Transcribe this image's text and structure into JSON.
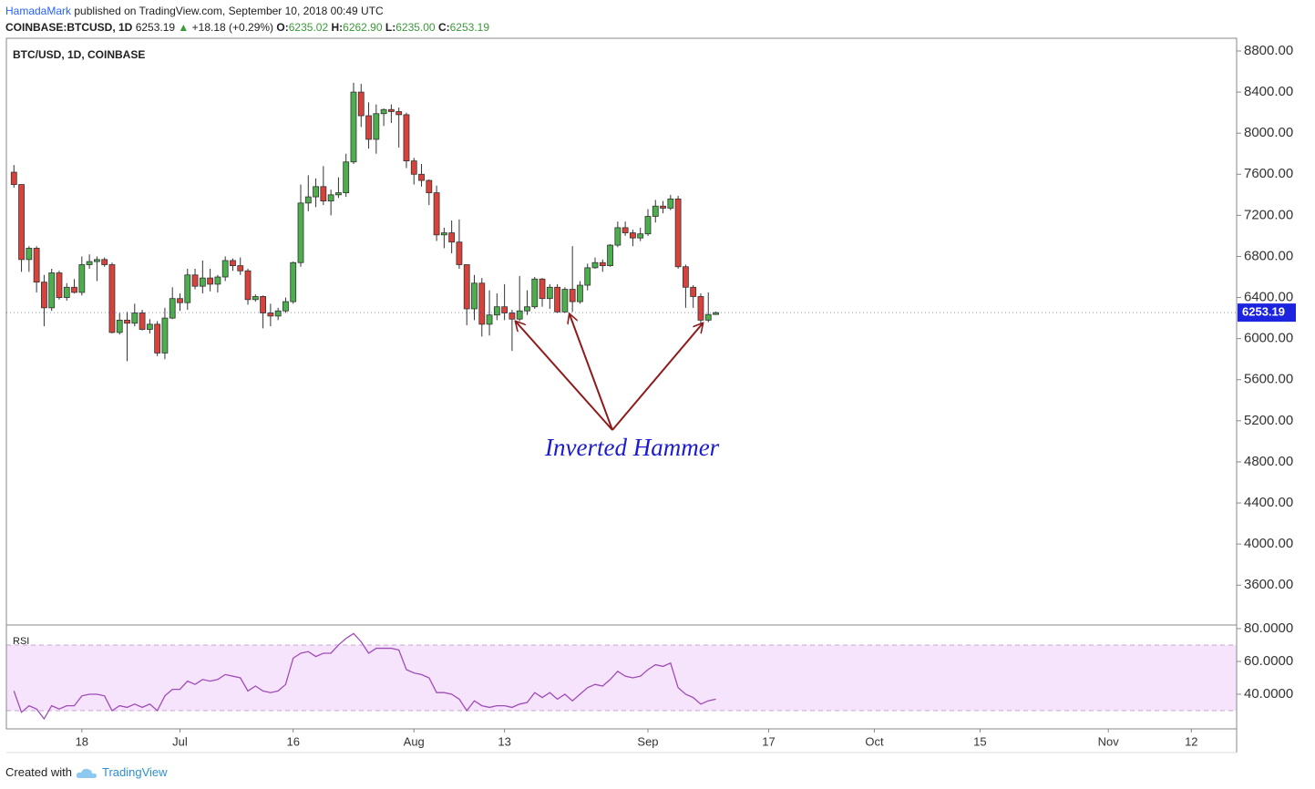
{
  "header": {
    "author": "HamadaMark",
    "published": "published on TradingView.com, September 10, 2018 00:49 UTC",
    "symbol": "COINBASE:BTCUSD, 1D",
    "price": "6253.19",
    "arrow": "▲",
    "change": "+18.18 (+0.29%)",
    "o_label": "O:",
    "o": "6235.02",
    "h_label": "H:",
    "h": "6262.90",
    "l_label": "L:",
    "l": "6235.00",
    "c_label": "C:",
    "c": "6253.19"
  },
  "footer": {
    "created": "Created with",
    "brand": "TradingView"
  },
  "chart_data": [
    {
      "type": "candlestick",
      "title": "BTC/USD, 1D, COINBASE",
      "annotation": "Inverted Hammer",
      "up_color": "#4cae4c",
      "down_color": "#d9423b",
      "last_price": 6253.19,
      "last_price_color": "#1d24e0",
      "categories": [
        "Jun 9",
        "Jun 10",
        "Jun 11",
        "Jun 12",
        "Jun 13",
        "Jun 14",
        "Jun 15",
        "Jun 16",
        "Jun 17",
        "Jun 18",
        "Jun 19",
        "Jun 20",
        "Jun 21",
        "Jun 22",
        "Jun 23",
        "Jun 24",
        "Jun 25",
        "Jun 26",
        "Jun 27",
        "Jun 28",
        "Jun 29",
        "Jun 30",
        "Jul 1",
        "Jul 2",
        "Jul 3",
        "Jul 4",
        "Jul 5",
        "Jul 6",
        "Jul 7",
        "Jul 8",
        "Jul 9",
        "Jul 10",
        "Jul 11",
        "Jul 12",
        "Jul 13",
        "Jul 14",
        "Jul 15",
        "Jul 16",
        "Jul 17",
        "Jul 18",
        "Jul 19",
        "Jul 20",
        "Jul 21",
        "Jul 22",
        "Jul 23",
        "Jul 24",
        "Jul 25",
        "Jul 26",
        "Jul 27",
        "Jul 28",
        "Jul 29",
        "Jul 30",
        "Jul 31",
        "Aug 1",
        "Aug 2",
        "Aug 3",
        "Aug 4",
        "Aug 5",
        "Aug 6",
        "Aug 7",
        "Aug 8",
        "Aug 9",
        "Aug 10",
        "Aug 11",
        "Aug 12",
        "Aug 13",
        "Aug 14",
        "Aug 15",
        "Aug 16",
        "Aug 17",
        "Aug 18",
        "Aug 19",
        "Aug 20",
        "Aug 21",
        "Aug 22",
        "Aug 23",
        "Aug 24",
        "Aug 25",
        "Aug 26",
        "Aug 27",
        "Aug 28",
        "Aug 29",
        "Aug 30",
        "Aug 31",
        "Sep 1",
        "Sep 2",
        "Sep 3",
        "Sep 4",
        "Sep 5",
        "Sep 6",
        "Sep 7",
        "Sep 8",
        "Sep 9",
        "Sep 10"
      ],
      "open": [
        7620,
        7500,
        6770,
        6880,
        6550,
        6300,
        6640,
        6400,
        6500,
        6450,
        6720,
        6750,
        6770,
        6720,
        6060,
        6180,
        6150,
        6250,
        6090,
        6140,
        5860,
        6200,
        6390,
        6350,
        6620,
        6510,
        6590,
        6530,
        6600,
        6760,
        6710,
        6660,
        6380,
        6410,
        6250,
        6220,
        6270,
        6360,
        6740,
        7320,
        7380,
        7480,
        7340,
        7400,
        7420,
        7720,
        8400,
        8170,
        7940,
        8190,
        8230,
        8210,
        8180,
        7730,
        7600,
        7540,
        7420,
        7010,
        7030,
        6940,
        6720,
        6290,
        6540,
        6140,
        6230,
        6310,
        6250,
        6190,
        6270,
        6310,
        6580,
        6390,
        6500,
        6260,
        6480,
        6360,
        6520,
        6690,
        6740,
        6710,
        6910,
        7080,
        7030,
        6980,
        7020,
        7190,
        7290,
        7270,
        7360,
        6700,
        6500,
        6410,
        6180,
        6235.02
      ],
      "high": [
        7690,
        7500,
        6900,
        6900,
        6620,
        6680,
        6660,
        6540,
        6580,
        6800,
        6820,
        6800,
        6790,
        6740,
        6250,
        6260,
        6340,
        6280,
        6190,
        6170,
        6300,
        6500,
        6440,
        6680,
        6680,
        6760,
        6680,
        6620,
        6800,
        6780,
        6790,
        6680,
        6430,
        6420,
        6340,
        6300,
        6400,
        6750,
        7500,
        7590,
        7560,
        7680,
        7450,
        7570,
        7800,
        8490,
        8480,
        8300,
        8280,
        8240,
        8280,
        8250,
        8200,
        7760,
        7700,
        7550,
        7490,
        7080,
        7150,
        7160,
        6720,
        6620,
        6590,
        6470,
        6440,
        6530,
        6280,
        6610,
        6470,
        6600,
        6590,
        6530,
        6530,
        6500,
        6900,
        6560,
        6730,
        6790,
        6770,
        6920,
        7140,
        7140,
        7060,
        7080,
        7260,
        7350,
        7340,
        7400,
        7390,
        6720,
        6520,
        6440,
        6450,
        6262.9
      ],
      "low": [
        7470,
        6650,
        6650,
        6450,
        6120,
        6270,
        6380,
        6370,
        6440,
        6420,
        6680,
        6560,
        6700,
        6050,
        6040,
        5780,
        6120,
        6080,
        6050,
        5830,
        5800,
        6190,
        6270,
        6280,
        6480,
        6440,
        6460,
        6450,
        6560,
        6660,
        6620,
        6330,
        6360,
        6100,
        6120,
        6180,
        6250,
        6340,
        6700,
        7240,
        7280,
        7300,
        7200,
        7370,
        7380,
        7700,
        8060,
        7850,
        7800,
        8070,
        8100,
        7860,
        7660,
        7500,
        7480,
        7300,
        6950,
        6880,
        6830,
        6680,
        6130,
        6180,
        6020,
        6030,
        6180,
        6180,
        5880,
        6170,
        6230,
        6290,
        6310,
        6290,
        6250,
        6250,
        6260,
        6340,
        6470,
        6680,
        6650,
        6700,
        6890,
        7000,
        6900,
        6950,
        7000,
        7130,
        7220,
        7250,
        6680,
        6300,
        6300,
        6140,
        6160,
        6235
      ],
      "close": [
        7500,
        6770,
        6880,
        6550,
        6300,
        6640,
        6400,
        6500,
        6450,
        6720,
        6750,
        6770,
        6720,
        6060,
        6180,
        6150,
        6250,
        6090,
        6140,
        5860,
        6200,
        6390,
        6350,
        6620,
        6510,
        6590,
        6530,
        6600,
        6760,
        6710,
        6660,
        6380,
        6410,
        6250,
        6220,
        6270,
        6360,
        6740,
        7320,
        7380,
        7480,
        7340,
        7400,
        7420,
        7720,
        8400,
        8170,
        7940,
        8190,
        8230,
        8210,
        8180,
        7730,
        7600,
        7540,
        7420,
        7010,
        7030,
        6940,
        6720,
        6290,
        6540,
        6140,
        6230,
        6310,
        6250,
        6190,
        6270,
        6310,
        6580,
        6390,
        6500,
        6260,
        6480,
        6360,
        6520,
        6690,
        6740,
        6710,
        6910,
        7080,
        7030,
        6980,
        7020,
        7190,
        7290,
        7270,
        7360,
        6700,
        6500,
        6410,
        6180,
        6235,
        6253.19
      ],
      "xlim": [
        "Jun 8",
        "Nov 18"
      ],
      "xticks": [
        {
          "value": "Jun 18",
          "label": "18"
        },
        {
          "value": "Jul 1",
          "label": "Jul"
        },
        {
          "value": "Jul 16",
          "label": "16"
        },
        {
          "value": "Aug 1",
          "label": "Aug"
        },
        {
          "value": "Aug 13",
          "label": "13"
        },
        {
          "value": "Sep 1",
          "label": "Sep"
        },
        {
          "value": "Sep 17",
          "label": "17"
        },
        {
          "value": "Oct 1",
          "label": "Oct"
        },
        {
          "value": "Oct 15",
          "label": "15"
        },
        {
          "value": "Nov 1",
          "label": "Nov"
        },
        {
          "value": "Nov 12",
          "label": "12"
        }
      ],
      "ylim": [
        3212,
        8924
      ],
      "yticks": [
        {
          "value": 8800,
          "label": "8800.00"
        },
        {
          "value": 8400,
          "label": "8400.00"
        },
        {
          "value": 8000,
          "label": "8000.00"
        },
        {
          "value": 7600,
          "label": "7600.00"
        },
        {
          "value": 7200,
          "label": "7200.00"
        },
        {
          "value": 6800,
          "label": "6800.00"
        },
        {
          "value": 6400,
          "label": "6400.00"
        },
        {
          "value": 6000,
          "label": "6000.00"
        },
        {
          "value": 5600,
          "label": "5600.00"
        },
        {
          "value": 5200,
          "label": "5200.00"
        },
        {
          "value": 4800,
          "label": "4800.00"
        },
        {
          "value": 4400,
          "label": "4400.00"
        },
        {
          "value": 4000,
          "label": "4000.00"
        },
        {
          "value": 3600,
          "label": "3600.00"
        }
      ]
    },
    {
      "type": "line",
      "title": "RSI",
      "color": "#a04cb8",
      "band": [
        30,
        70
      ],
      "band_color": "#f5e4fb",
      "values": [
        42,
        29,
        33,
        31,
        25,
        33,
        31,
        33,
        33,
        39,
        40,
        40,
        39,
        30,
        33,
        32,
        34,
        32,
        34,
        30,
        39,
        43,
        43,
        48,
        46,
        49,
        48,
        49,
        52,
        51,
        50,
        42,
        45,
        42,
        41,
        42,
        46,
        62,
        65,
        66,
        63,
        65,
        65,
        70,
        74,
        77,
        72,
        65,
        68,
        68,
        68,
        67,
        55,
        53,
        52,
        50,
        41,
        41,
        40,
        37,
        30,
        36,
        33,
        32,
        33,
        33,
        32,
        34,
        35,
        41,
        38,
        41,
        37,
        40,
        36,
        40,
        44,
        46,
        45,
        49,
        54,
        51,
        50,
        51,
        55,
        58,
        57,
        59,
        44,
        40,
        38,
        34,
        36,
        37
      ],
      "ylim": [
        18.9,
        82.2
      ],
      "yticks": [
        {
          "value": 80,
          "label": "80.0000"
        },
        {
          "value": 60,
          "label": "60.0000"
        },
        {
          "value": 40,
          "label": "40.0000"
        }
      ]
    }
  ]
}
